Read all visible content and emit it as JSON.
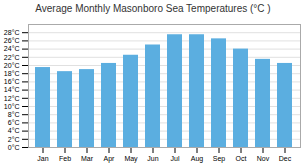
{
  "chart_data": {
    "type": "bar",
    "title": "Average Monthly Masonboro Sea Temperatures (°C )",
    "categories": [
      "Jan",
      "Feb",
      "Mar",
      "Apr",
      "May",
      "Jun",
      "Jul",
      "Aug",
      "Sep",
      "Oct",
      "Nov",
      "Dec"
    ],
    "values": [
      19.5,
      18.5,
      19.0,
      20.5,
      22.5,
      25.0,
      27.5,
      27.5,
      26.5,
      24.0,
      21.5,
      20.5
    ],
    "color": "#5baee0",
    "ylim": [
      0,
      30
    ],
    "yticks": [
      {
        "value": 0,
        "label": "0°C"
      },
      {
        "value": 2,
        "label": "2°C"
      },
      {
        "value": 4,
        "label": "4°C"
      },
      {
        "value": 6,
        "label": "6°C"
      },
      {
        "value": 8,
        "label": "8°C"
      },
      {
        "value": 10,
        "label": "10°C"
      },
      {
        "value": 12,
        "label": "12°C"
      },
      {
        "value": 14,
        "label": "14°C"
      },
      {
        "value": 16,
        "label": "16°C"
      },
      {
        "value": 18,
        "label": "18°C"
      },
      {
        "value": 20,
        "label": "20°C"
      },
      {
        "value": 22,
        "label": "22°C"
      },
      {
        "value": 24,
        "label": "24°C"
      },
      {
        "value": 26,
        "label": "26°C"
      },
      {
        "value": 28,
        "label": "28°C"
      }
    ],
    "grid": true
  }
}
